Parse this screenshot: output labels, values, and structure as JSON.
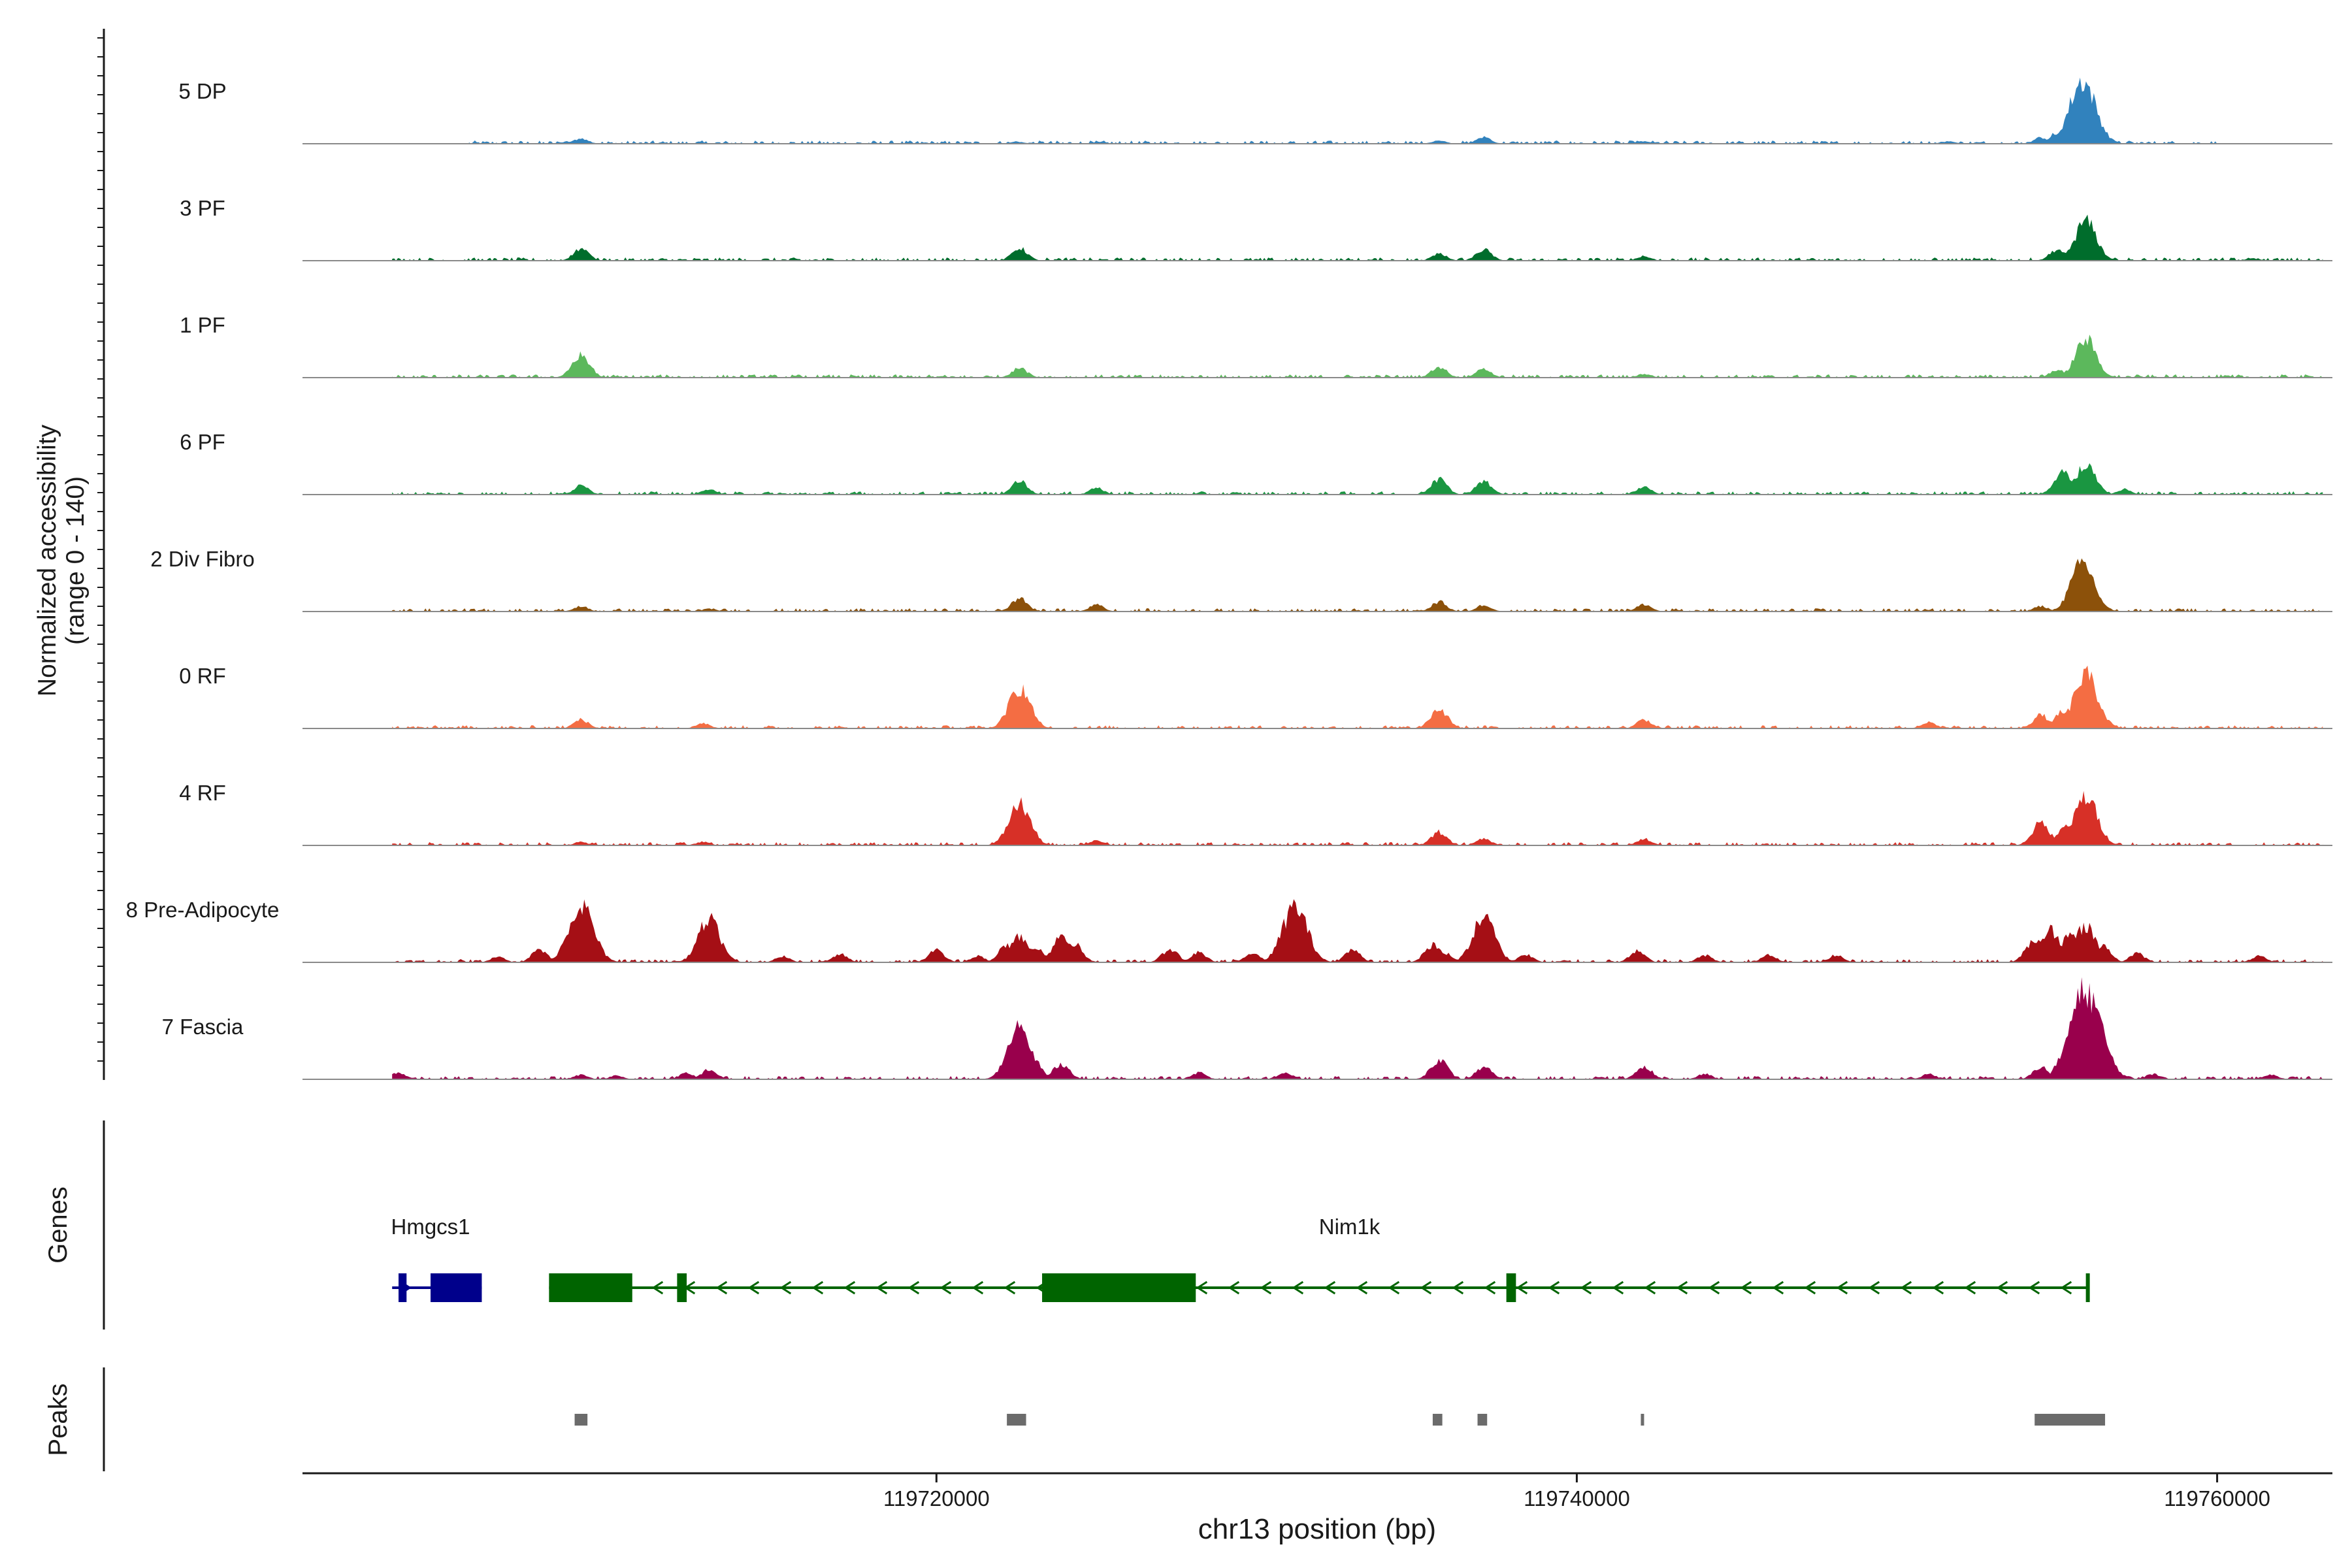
{
  "chart_data": {
    "type": "area",
    "title": "",
    "xlabel": "chr13 position (bp)",
    "ylabel": "Normalized accessibility",
    "ylabel_range": "(range 0 - 140)",
    "ylim": [
      0,
      140
    ],
    "xlim": [
      119700200,
      119763600
    ],
    "x_ticks": [
      119720000,
      119740000,
      119760000
    ],
    "x_tick_labels": [
      "119720000",
      "119740000",
      "119760000"
    ],
    "genes_panel_label": "Genes",
    "peaks_panel_label": "Peaks",
    "tracks": [
      {
        "name": "5 DP",
        "color": "#3182bd",
        "span": [
          119705400,
          119760000
        ],
        "peaks": [
          [
            119708900,
            12
          ],
          [
            119708500,
            5
          ],
          [
            119722500,
            5
          ],
          [
            119735700,
            7
          ],
          [
            119737100,
            15
          ],
          [
            119742100,
            6
          ],
          [
            119754500,
            14
          ],
          [
            119755000,
            24
          ],
          [
            119755800,
            140
          ],
          [
            119751600,
            5
          ]
        ]
      },
      {
        "name": "3 PF",
        "color": "#006d2c",
        "span": [
          119703000,
          119763300
        ],
        "peaks": [
          [
            119708900,
            27
          ],
          [
            119722600,
            28
          ],
          [
            119735700,
            16
          ],
          [
            119737100,
            25
          ],
          [
            119742100,
            10
          ],
          [
            119755000,
            24
          ],
          [
            119755900,
            88
          ],
          [
            119761100,
            5
          ]
        ]
      },
      {
        "name": "1 PF",
        "color": "#5cb85c",
        "span": [
          119703000,
          119763300
        ],
        "peaks": [
          [
            119708900,
            50
          ],
          [
            119722600,
            22
          ],
          [
            119735700,
            24
          ],
          [
            119737100,
            20
          ],
          [
            119742100,
            8
          ],
          [
            119755000,
            18
          ],
          [
            119755900,
            85
          ]
        ]
      },
      {
        "name": "6 PF",
        "color": "#1a9641",
        "span": [
          119703000,
          119763300
        ],
        "peaks": [
          [
            119708900,
            20
          ],
          [
            119712900,
            12
          ],
          [
            119722600,
            30
          ],
          [
            119725000,
            15
          ],
          [
            119735700,
            34
          ],
          [
            119737100,
            30
          ],
          [
            119742100,
            18
          ],
          [
            119755200,
            50
          ],
          [
            119755900,
            68
          ],
          [
            119757100,
            12
          ]
        ]
      },
      {
        "name": "2 Div Fibro",
        "color": "#8c510a",
        "span": [
          119703000,
          119763300
        ],
        "peaks": [
          [
            119708900,
            12
          ],
          [
            119712900,
            6
          ],
          [
            119722600,
            30
          ],
          [
            119725000,
            15
          ],
          [
            119735700,
            22
          ],
          [
            119737100,
            15
          ],
          [
            119742100,
            16
          ],
          [
            119754500,
            12
          ],
          [
            119755800,
            108
          ]
        ]
      },
      {
        "name": "0 RF",
        "color": "#f46d43",
        "span": [
          119703000,
          119763300
        ],
        "peaks": [
          [
            119708900,
            20
          ],
          [
            119712700,
            12
          ],
          [
            119722600,
            90
          ],
          [
            119735700,
            44
          ],
          [
            119742100,
            20
          ],
          [
            119751000,
            14
          ],
          [
            119754500,
            30
          ],
          [
            119755200,
            40
          ],
          [
            119755900,
            118
          ]
        ]
      },
      {
        "name": "4 RF",
        "color": "#d73027",
        "span": [
          119703000,
          119763300
        ],
        "peaks": [
          [
            119708900,
            8
          ],
          [
            119712700,
            8
          ],
          [
            119722600,
            92
          ],
          [
            119725000,
            12
          ],
          [
            119735700,
            30
          ],
          [
            119737100,
            15
          ],
          [
            119742100,
            15
          ],
          [
            119754500,
            50
          ],
          [
            119755300,
            42
          ],
          [
            119755900,
            108
          ]
        ]
      },
      {
        "name": "8 Pre-Adipocyte",
        "color": "#a50f15",
        "span": [
          119703000,
          119763300
        ],
        "peaks": [
          [
            119706300,
            12
          ],
          [
            119707600,
            28
          ],
          [
            119708500,
            38
          ],
          [
            119708900,
            128
          ],
          [
            119709300,
            32
          ],
          [
            119712600,
            26
          ],
          [
            119712900,
            95
          ],
          [
            119713200,
            40
          ],
          [
            119715200,
            14
          ],
          [
            119717000,
            18
          ],
          [
            119720000,
            28
          ],
          [
            119721300,
            14
          ],
          [
            119722200,
            40
          ],
          [
            119722600,
            60
          ],
          [
            119723100,
            35
          ],
          [
            119723900,
            55
          ],
          [
            119724300,
            42
          ],
          [
            119727300,
            30
          ],
          [
            119728200,
            22
          ],
          [
            119729900,
            22
          ],
          [
            119730800,
            34
          ],
          [
            119731200,
            125
          ],
          [
            119733000,
            28
          ],
          [
            119735500,
            38
          ],
          [
            119735900,
            20
          ],
          [
            119737100,
            100
          ],
          [
            119737400,
            32
          ],
          [
            119738400,
            18
          ],
          [
            119741900,
            25
          ],
          [
            119744000,
            16
          ],
          [
            119746000,
            18
          ],
          [
            119748100,
            16
          ],
          [
            119754300,
            50
          ],
          [
            119754800,
            72
          ],
          [
            119755400,
            60
          ],
          [
            119755900,
            82
          ],
          [
            119756400,
            40
          ],
          [
            119757500,
            20
          ],
          [
            119761300,
            14
          ]
        ]
      },
      {
        "name": "7 Fascia",
        "color": "#99004c",
        "span": [
          119703000,
          119763300
        ],
        "peaks": [
          [
            119703200,
            16
          ],
          [
            119708900,
            10
          ],
          [
            119710000,
            8
          ],
          [
            119712200,
            14
          ],
          [
            119712900,
            22
          ],
          [
            119722600,
            112
          ],
          [
            119722900,
            60
          ],
          [
            119723900,
            35
          ],
          [
            119728200,
            15
          ],
          [
            119730900,
            14
          ],
          [
            119735700,
            44
          ],
          [
            119737100,
            28
          ],
          [
            119742100,
            30
          ],
          [
            119744000,
            12
          ],
          [
            119751000,
            12
          ],
          [
            119754500,
            28
          ],
          [
            119755900,
            198
          ],
          [
            119756400,
            30
          ],
          [
            119758000,
            12
          ],
          [
            119761700,
            10
          ]
        ]
      }
    ],
    "genes": [
      {
        "name": "Hmgcs1",
        "strand": "+",
        "color": "#00008b",
        "span": [
          119703000,
          119705800
        ],
        "exons": [
          [
            119703200,
            119703450
          ],
          [
            119704200,
            119705800
          ]
        ],
        "label_position": 119704200
      },
      {
        "name": "Nim1k",
        "strand": "-",
        "color": "#006400",
        "span": [
          119707900,
          119756000
        ],
        "exons": [
          [
            119707900,
            119710500
          ],
          [
            119711900,
            119712200
          ],
          [
            119723300,
            119728100
          ],
          [
            119737800,
            119738100
          ],
          [
            119755900,
            119756000
          ]
        ],
        "label_position": 119732900
      }
    ],
    "peaks": [
      [
        119708700,
        119709100
      ],
      [
        119722200,
        119722800
      ],
      [
        119735500,
        119735800
      ],
      [
        119736900,
        119737200
      ],
      [
        119742000,
        119742100
      ],
      [
        119754300,
        119756500
      ]
    ]
  }
}
